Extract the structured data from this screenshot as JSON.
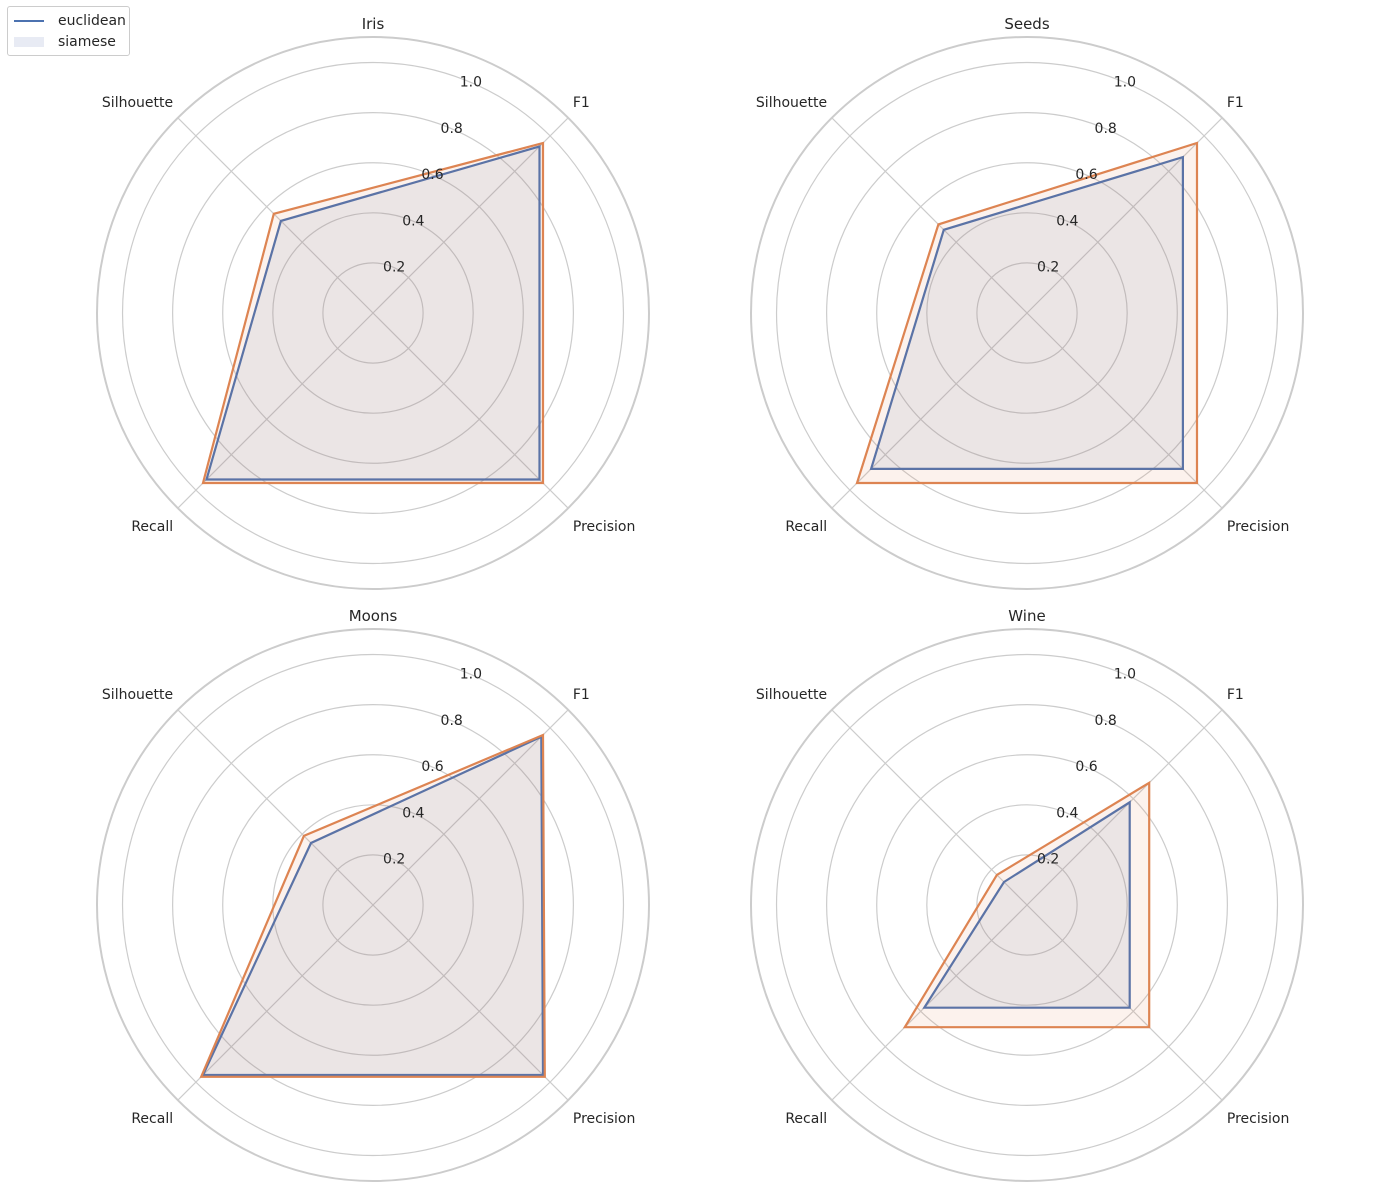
{
  "chart_data": [
    {
      "type": "radar",
      "title": "Iris",
      "axes": [
        "F1",
        "Precision",
        "Recall",
        "Silhouette"
      ],
      "rticks": [
        0.2,
        0.4,
        0.6,
        0.8,
        1.0
      ],
      "rlim": [
        0,
        1.05
      ],
      "series": [
        {
          "name": "euclidean",
          "values": [
            0.94,
            0.94,
            0.94,
            0.52
          ]
        },
        {
          "name": "siamese",
          "values": [
            0.96,
            0.96,
            0.96,
            0.56
          ]
        }
      ]
    },
    {
      "type": "radar",
      "title": "Seeds",
      "axes": [
        "F1",
        "Precision",
        "Recall",
        "Silhouette"
      ],
      "rticks": [
        0.2,
        0.4,
        0.6,
        0.8,
        1.0
      ],
      "rlim": [
        0,
        1.05
      ],
      "series": [
        {
          "name": "euclidean",
          "values": [
            0.88,
            0.88,
            0.88,
            0.47
          ]
        },
        {
          "name": "siamese",
          "values": [
            0.96,
            0.96,
            0.96,
            0.5
          ]
        }
      ]
    },
    {
      "type": "radar",
      "title": "Moons",
      "axes": [
        "F1",
        "Precision",
        "Recall",
        "Silhouette"
      ],
      "rticks": [
        0.2,
        0.4,
        0.6,
        0.8,
        1.0
      ],
      "rlim": [
        0,
        1.05
      ],
      "series": [
        {
          "name": "euclidean",
          "values": [
            0.95,
            0.96,
            0.96,
            0.35
          ]
        },
        {
          "name": "siamese",
          "values": [
            0.96,
            0.97,
            0.97,
            0.39
          ]
        }
      ]
    },
    {
      "type": "radar",
      "title": "Wine",
      "axes": [
        "F1",
        "Precision",
        "Recall",
        "Silhouette"
      ],
      "rticks": [
        0.2,
        0.4,
        0.6,
        0.8,
        1.0
      ],
      "rlim": [
        0,
        1.05
      ],
      "series": [
        {
          "name": "euclidean",
          "values": [
            0.58,
            0.58,
            0.58,
            0.13
          ]
        },
        {
          "name": "siamese",
          "values": [
            0.69,
            0.69,
            0.69,
            0.17
          ]
        }
      ]
    }
  ],
  "legend": {
    "items": [
      {
        "label": "euclidean",
        "kind": "line",
        "color": "#4c72b0"
      },
      {
        "label": "siamese",
        "kind": "patch",
        "color": "#e8ebf4"
      }
    ]
  },
  "colors": {
    "euclidean": "#4c72b0",
    "siamese": "#dd8452",
    "grid": "#cccccc",
    "text": "#262626"
  }
}
